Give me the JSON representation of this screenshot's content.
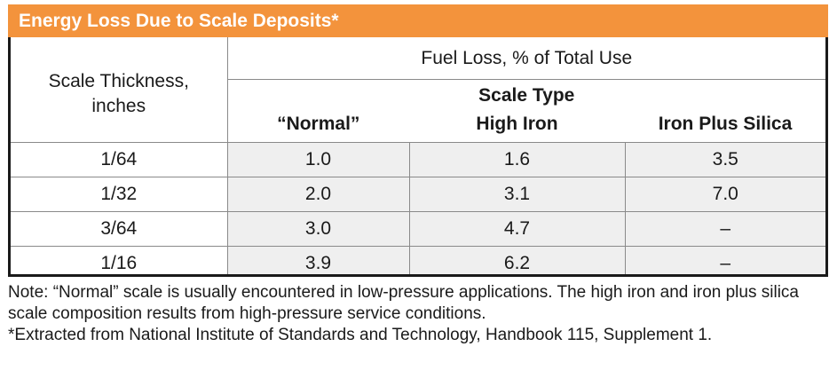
{
  "title": "Energy Loss Due to Scale Deposits*",
  "table": {
    "row_header": [
      "Scale Thickness,",
      "inches"
    ],
    "group_header": "Fuel Loss, % of Total Use",
    "subgroup_header": "Scale Type",
    "columns": [
      "“Normal”",
      "High Iron",
      "Iron Plus Silica"
    ],
    "rows": [
      {
        "thickness": "1/64",
        "values": [
          "1.0",
          "1.6",
          "3.5"
        ]
      },
      {
        "thickness": "1/32",
        "values": [
          "2.0",
          "3.1",
          "7.0"
        ]
      },
      {
        "thickness": "3/64",
        "values": [
          "3.0",
          "4.7",
          "–"
        ]
      },
      {
        "thickness": "1/16",
        "values": [
          "3.9",
          "6.2",
          "–"
        ]
      }
    ]
  },
  "notes": {
    "note": "Note: “Normal” scale is usually encountered in low-pressure applications. The high iron and iron plus silica scale composition results from high-pressure service conditions.",
    "footnote": "*Extracted from National Institute of Standards and Technology, Handbook 115, Supplement 1."
  },
  "colors": {
    "title_bar": "#f3933c",
    "value_cell": "#efefef",
    "border": "#1a1a1a"
  }
}
